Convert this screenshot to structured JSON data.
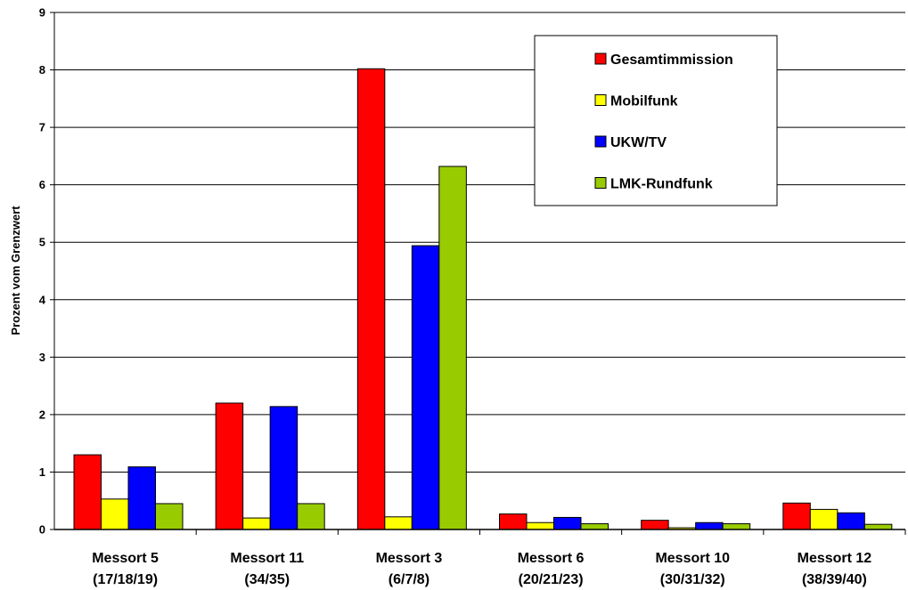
{
  "chart_data": {
    "type": "bar",
    "title": "",
    "xlabel": "",
    "ylabel": "Prozent vom Grenzwert",
    "ylim": [
      0,
      9
    ],
    "yticks": [
      0,
      1,
      2,
      3,
      4,
      5,
      6,
      7,
      8,
      9
    ],
    "grid": true,
    "legend_position": "top-right",
    "categories": [
      [
        "Messort 5",
        "(17/18/19)"
      ],
      [
        "Messort 11",
        "(34/35)"
      ],
      [
        "Messort 3",
        "(6/7/8)"
      ],
      [
        "Messort 6",
        "(20/21/23)"
      ],
      [
        "Messort 10",
        "(30/31/32)"
      ],
      [
        "Messort 12",
        "(38/39/40)"
      ]
    ],
    "series": [
      {
        "name": "Gesamtimmission",
        "color": "#ff0000",
        "values": [
          1.3,
          2.2,
          8.02,
          0.27,
          0.16,
          0.46
        ]
      },
      {
        "name": "Mobilfunk",
        "color": "#ffff00",
        "values": [
          0.53,
          0.2,
          0.22,
          0.12,
          0.03,
          0.35
        ]
      },
      {
        "name": "UKW/TV",
        "color": "#0000ff",
        "values": [
          1.09,
          2.14,
          4.94,
          0.21,
          0.12,
          0.29
        ]
      },
      {
        "name": "LMK-Rundfunk",
        "color": "#99cc00",
        "values": [
          0.45,
          0.45,
          6.32,
          0.1,
          0.1,
          0.09
        ]
      }
    ]
  }
}
